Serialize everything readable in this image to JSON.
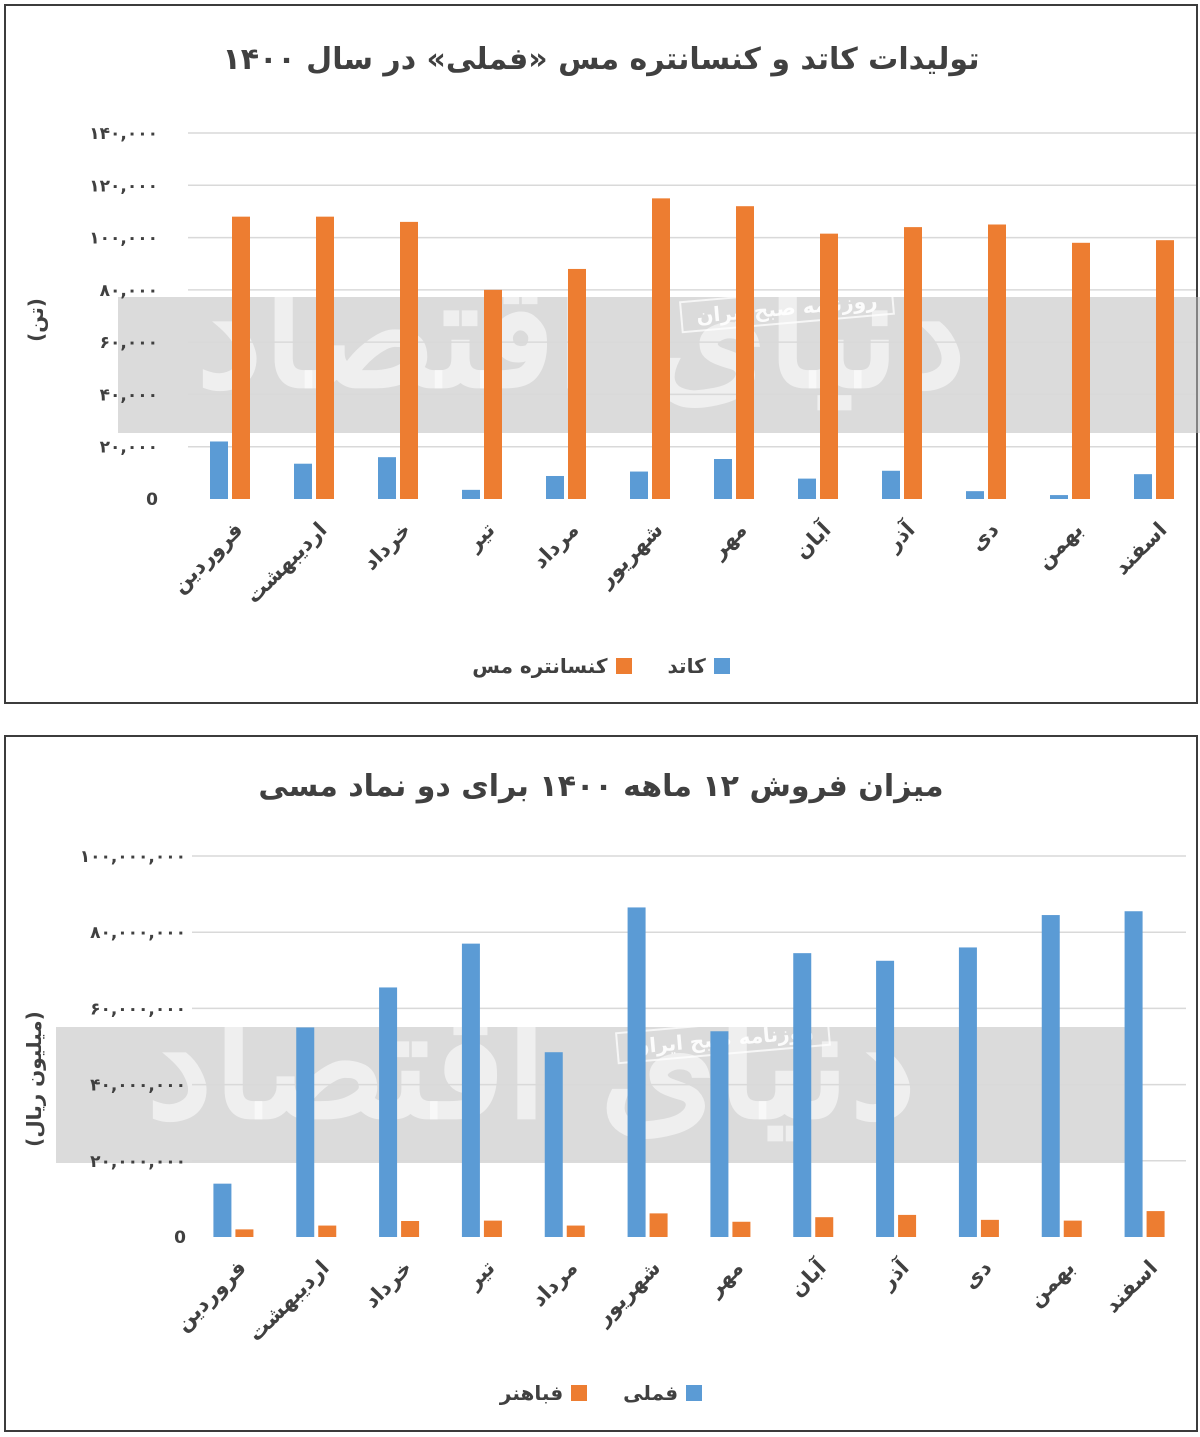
{
  "colors": {
    "blue": "#5b9bd5",
    "orange": "#ed7d31",
    "grid": "#d9d9d9",
    "text": "#404040",
    "watermark_band": "#bfbfbf"
  },
  "watermark": {
    "logo_text": "دنیای اقتصاد",
    "box_text": "روزنامه صبح ایران"
  },
  "chart_data": [
    {
      "type": "bar",
      "title": "تولیدات کاتد و کنسانتره مس «فملی» در سال ۱۴۰۰",
      "ylabel": "(تن)",
      "ylim": [
        0,
        140000
      ],
      "yticks": [
        "0",
        "۲۰,۰۰۰",
        "۴۰,۰۰۰",
        "۶۰,۰۰۰",
        "۸۰,۰۰۰",
        "۱۰۰,۰۰۰",
        "۱۲۰,۰۰۰",
        "۱۴۰,۰۰۰"
      ],
      "categories": [
        "فروردین",
        "اردیبهشت",
        "خرداد",
        "تیر",
        "مرداد",
        "شهریور",
        "مهر",
        "آبان",
        "آذر",
        "دی",
        "بهمن",
        "اسفند"
      ],
      "series": [
        {
          "name": "کاتد",
          "color": "#5b9bd5",
          "values": [
            22000,
            13500,
            16000,
            3500,
            8800,
            10500,
            15300,
            7800,
            10800,
            3000,
            1500,
            9500
          ]
        },
        {
          "name": "کنسانتره مس",
          "color": "#ed7d31",
          "values": [
            108000,
            108000,
            106000,
            80000,
            88000,
            115000,
            112000,
            101500,
            104000,
            105000,
            98000,
            99000
          ]
        }
      ],
      "legend": "bottom",
      "grid": true
    },
    {
      "type": "bar",
      "title": "میزان فروش ۱۲ ماهه ۱۴۰۰ برای دو نماد مسی",
      "ylabel": "(میلیون ریال)",
      "ylim": [
        0,
        100000000
      ],
      "yticks": [
        "0",
        "۲۰,۰۰۰,۰۰۰",
        "۴۰,۰۰۰,۰۰۰",
        "۶۰,۰۰۰,۰۰۰",
        "۸۰,۰۰۰,۰۰۰",
        "۱۰۰,۰۰۰,۰۰۰"
      ],
      "categories": [
        "فروردین",
        "اردیبهشت",
        "خرداد",
        "تیر",
        "مرداد",
        "شهریور",
        "مهر",
        "آبان",
        "آذر",
        "دی",
        "بهمن",
        "اسفند"
      ],
      "series": [
        {
          "name": "فملی",
          "color": "#5b9bd5",
          "values": [
            14000000,
            55000000,
            65500000,
            77000000,
            48500000,
            86500000,
            54000000,
            74500000,
            72500000,
            76000000,
            84500000,
            85500000
          ]
        },
        {
          "name": "فباهنر",
          "color": "#ed7d31",
          "values": [
            2000000,
            3000000,
            4200000,
            4300000,
            3000000,
            6200000,
            4000000,
            5200000,
            5800000,
            4500000,
            4300000,
            6800000
          ]
        }
      ],
      "legend": "bottom",
      "grid": true
    }
  ]
}
